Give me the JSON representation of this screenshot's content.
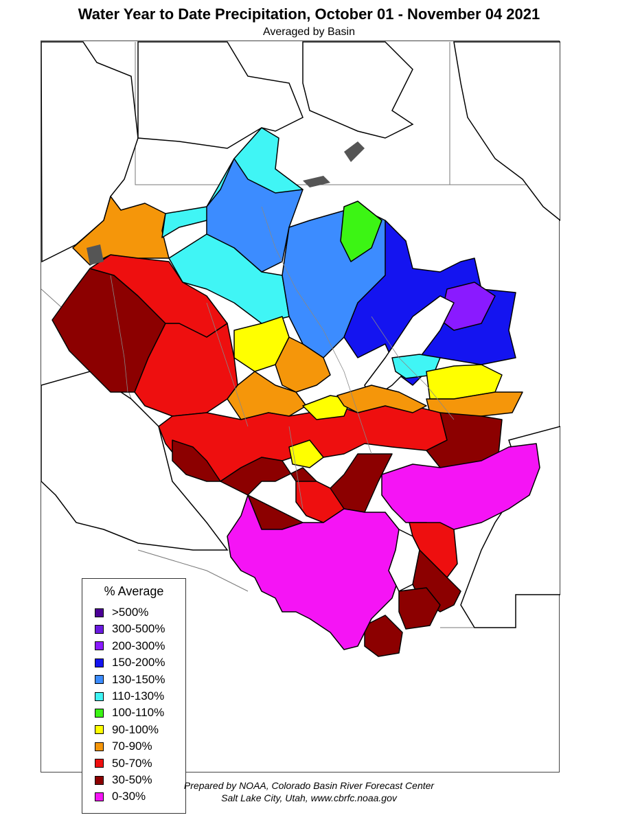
{
  "header": {
    "title": "Water Year to Date Precipitation, October 01  - November 04 2021",
    "subtitle": "Averaged by Basin"
  },
  "legend": {
    "title": "% Average",
    "items": [
      {
        "label": ">500%",
        "color": "#4b0096"
      },
      {
        "label": "300-500%",
        "color": "#6a1ae0"
      },
      {
        "label": "200-300%",
        "color": "#8a1aff"
      },
      {
        "label": "150-200%",
        "color": "#1414f0"
      },
      {
        "label": "130-150%",
        "color": "#3c8cff"
      },
      {
        "label": "110-130%",
        "color": "#40f5f5"
      },
      {
        "label": "100-110%",
        "color": "#3cf514"
      },
      {
        "label": "90-100%",
        "color": "#ffff00"
      },
      {
        "label": "70-90%",
        "color": "#f5960a"
      },
      {
        "label": "50-70%",
        "color": "#ee0f0f"
      },
      {
        "label": "30-50%",
        "color": "#8c0000"
      },
      {
        "label": "0-30%",
        "color": "#f514f5"
      }
    ]
  },
  "footer": {
    "line1": "Prepared by NOAA, Colorado Basin River Forecast Center",
    "line2": "Salt Lake City, Utah, www.cbrfc.noaa.gov"
  }
}
